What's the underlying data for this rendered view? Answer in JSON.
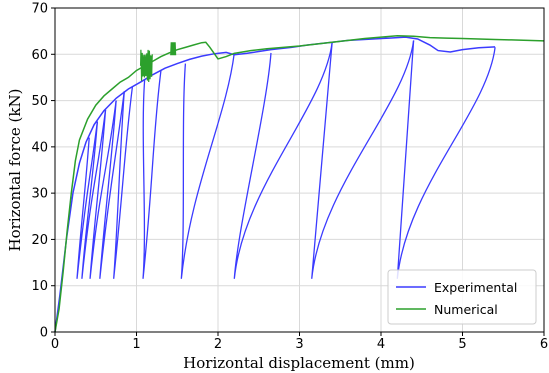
{
  "chart_data": {
    "type": "line",
    "title": "",
    "xlabel": "Horizontal displacement (mm)",
    "ylabel": "Horizontal force (kN)",
    "xlim": [
      0,
      6
    ],
    "ylim": [
      0,
      70
    ],
    "xticks": [
      "0",
      "1",
      "2",
      "3",
      "4",
      "5",
      "6"
    ],
    "yticks": [
      "0",
      "10",
      "20",
      "30",
      "40",
      "50",
      "60",
      "70"
    ],
    "grid": true,
    "legend_position": "bottom-right",
    "series": [
      {
        "name": "Experimental",
        "color": "#3b3bff",
        "x": [
          0.0,
          0.06,
          0.14,
          0.22,
          0.3,
          0.38,
          0.48,
          0.6,
          0.75,
          0.9,
          1.05,
          1.2,
          1.35,
          1.5,
          1.65,
          1.8,
          1.95,
          2.1,
          2.2,
          2.35,
          2.5,
          2.65,
          2.9,
          3.1,
          3.4,
          3.6,
          3.9,
          4.1,
          4.3,
          4.45,
          4.6,
          4.7,
          4.85,
          5.0,
          5.2,
          5.4
        ],
        "y": [
          0.0,
          8.0,
          20.0,
          30.0,
          36.5,
          41.0,
          44.8,
          47.8,
          50.5,
          52.5,
          54.0,
          55.6,
          57.0,
          58.0,
          58.9,
          59.6,
          60.1,
          60.4,
          59.9,
          60.2,
          60.6,
          61.0,
          61.5,
          62.0,
          62.6,
          63.0,
          63.3,
          63.5,
          63.7,
          63.3,
          62.0,
          60.8,
          60.5,
          61.0,
          61.4,
          61.6
        ],
        "cycle_envelope_peaks": [
          {
            "x": 0.42,
            "y": 42.0
          },
          {
            "x": 0.52,
            "y": 45.5
          },
          {
            "x": 0.62,
            "y": 48.0
          },
          {
            "x": 0.75,
            "y": 50.0
          },
          {
            "x": 0.85,
            "y": 52.0
          },
          {
            "x": 0.95,
            "y": 53.0
          },
          {
            "x": 1.1,
            "y": 54.5
          },
          {
            "x": 1.3,
            "y": 56.5
          },
          {
            "x": 1.6,
            "y": 58.0
          },
          {
            "x": 2.2,
            "y": 60.3
          },
          {
            "x": 2.65,
            "y": 60.3
          },
          {
            "x": 3.4,
            "y": 62.5
          },
          {
            "x": 4.4,
            "y": 63.0
          },
          {
            "x": 5.4,
            "y": 61.5
          }
        ],
        "cycle_unload_minima": [
          {
            "x": 0.27,
            "y": 11.5
          },
          {
            "x": 0.33,
            "y": 11.5
          },
          {
            "x": 0.43,
            "y": 11.5
          },
          {
            "x": 0.55,
            "y": 11.5
          },
          {
            "x": 0.72,
            "y": 11.5
          },
          {
            "x": 1.08,
            "y": 11.5
          },
          {
            "x": 1.55,
            "y": 11.5
          },
          {
            "x": 2.2,
            "y": 11.5
          },
          {
            "x": 3.15,
            "y": 11.5
          },
          {
            "x": 4.2,
            "y": 11.5
          }
        ]
      },
      {
        "name": "Numerical",
        "color": "#2ca02c",
        "x": [
          0.0,
          0.05,
          0.1,
          0.15,
          0.2,
          0.25,
          0.3,
          0.4,
          0.5,
          0.6,
          0.7,
          0.8,
          0.9,
          1.0,
          1.1,
          1.2,
          1.3,
          1.4,
          1.5,
          1.6,
          1.7,
          1.8,
          1.85,
          1.9,
          2.0,
          2.1,
          2.2,
          2.4,
          2.6,
          2.8,
          3.0,
          3.2,
          3.4,
          3.6,
          3.8,
          4.0,
          4.2,
          4.4,
          4.6,
          4.8,
          5.0,
          5.2,
          5.4,
          5.6,
          5.8,
          6.0
        ],
        "y": [
          0.0,
          5.0,
          13.0,
          22.0,
          30.0,
          37.0,
          41.5,
          46.0,
          49.0,
          51.0,
          52.5,
          54.0,
          55.0,
          56.5,
          57.5,
          58.5,
          59.5,
          60.3,
          61.0,
          61.5,
          62.0,
          62.5,
          62.6,
          61.5,
          59.0,
          59.5,
          60.2,
          60.8,
          61.2,
          61.5,
          61.8,
          62.2,
          62.6,
          63.0,
          63.4,
          63.7,
          64.0,
          63.9,
          63.6,
          63.5,
          63.4,
          63.3,
          63.2,
          63.1,
          63.0,
          62.9
        ]
      }
    ]
  }
}
